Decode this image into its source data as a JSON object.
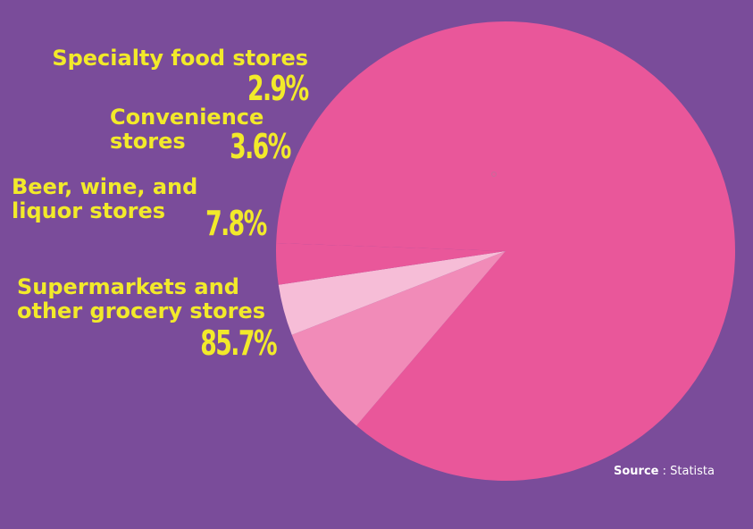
{
  "colors": {
    "background": "#7a4c9a",
    "label_text": "#f2ea2a"
  },
  "chart_data": {
    "type": "pie",
    "categories": [
      "Supermarkets and other grocery stores",
      "Beer, wine, and liquor stores",
      "Convenience stores",
      "Specialty food stores"
    ],
    "values": [
      85.7,
      7.8,
      3.6,
      2.9
    ],
    "value_labels": [
      "85.7%",
      "7.8%",
      "3.6%",
      "2.9%"
    ],
    "colors": [
      "#e9579a",
      "#f18bb8",
      "#f6bdd7",
      "#e9579a"
    ],
    "start_direction": "left",
    "direction": "clockwise"
  },
  "source": {
    "prefix": "Source",
    "separator": " : ",
    "name": "Statista"
  }
}
